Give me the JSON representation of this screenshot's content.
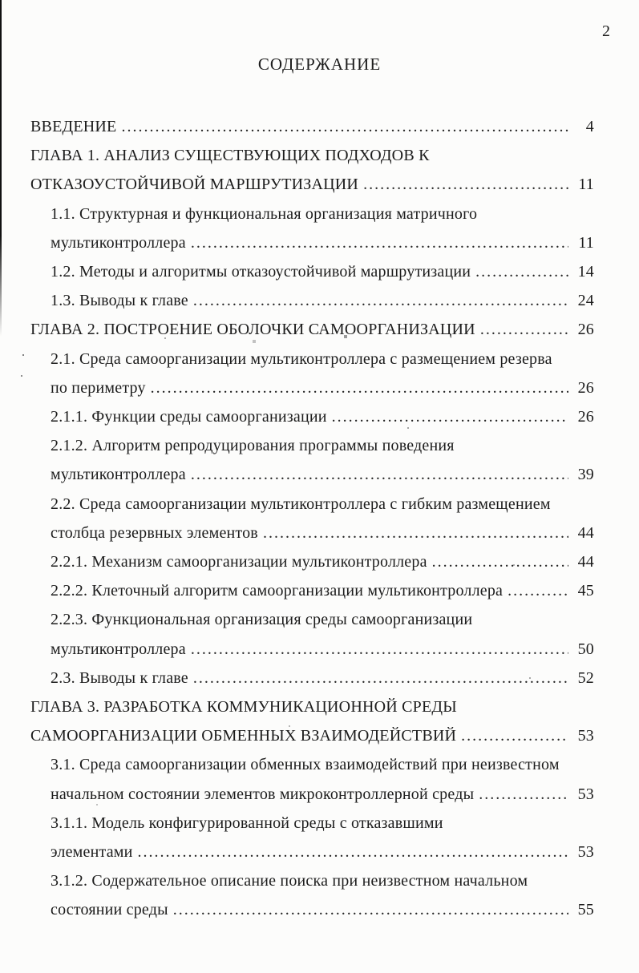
{
  "page": {
    "corner_page_number": "2",
    "title": "СОДЕРЖАНИЕ"
  },
  "toc": {
    "entries": [
      {
        "level": 0,
        "lines": [
          "ВВЕДЕНИЕ"
        ],
        "page": "4"
      },
      {
        "level": 0,
        "lines": [
          "ГЛАВА 1. АНАЛИЗ СУЩЕСТВУЮЩИХ ПОДХОДОВ К",
          "ОТКАЗОУСТОЙЧИВОЙ МАРШРУТИЗАЦИИ"
        ],
        "page": "11"
      },
      {
        "level": 1,
        "lines": [
          "1.1. Структурная и функциональная организация матричного",
          "мультиконтроллера"
        ],
        "page": "11"
      },
      {
        "level": 1,
        "lines": [
          "1.2. Методы и алгоритмы отказоустойчивой маршрутизации"
        ],
        "page": "14"
      },
      {
        "level": 1,
        "lines": [
          "1.3. Выводы к главе"
        ],
        "page": "24"
      },
      {
        "level": 0,
        "lines": [
          "ГЛАВА 2. ПОСТРОЕНИЕ ОБОЛОЧКИ САМООРГАНИЗАЦИИ"
        ],
        "page": "26"
      },
      {
        "level": 1,
        "lines": [
          "2.1. Среда самоорганизации мультиконтроллера с размещением резерва",
          "по периметру"
        ],
        "page": "26"
      },
      {
        "level": 1,
        "lines": [
          "2.1.1. Функции среды самоорганизации"
        ],
        "page": "26"
      },
      {
        "level": 1,
        "lines": [
          "2.1.2. Алгоритм репродуцирования программы поведения",
          "мультиконтроллера"
        ],
        "page": "39"
      },
      {
        "level": 1,
        "lines": [
          "2.2. Среда самоорганизации мультиконтроллера с гибким размещением",
          "столбца резервных элементов"
        ],
        "page": "44"
      },
      {
        "level": 1,
        "lines": [
          "2.2.1. Механизм самоорганизации мультиконтроллера"
        ],
        "page": "44"
      },
      {
        "level": 1,
        "lines": [
          "2.2.2. Клеточный алгоритм самоорганизации мультиконтроллера"
        ],
        "page": "45"
      },
      {
        "level": 1,
        "lines": [
          "2.2.3. Функциональная организация среды самоорганизации",
          "мультиконтроллера"
        ],
        "page": "50"
      },
      {
        "level": 1,
        "lines": [
          "2.3. Выводы к главе"
        ],
        "page": "52"
      },
      {
        "level": 0,
        "lines": [
          "ГЛАВА 3. РАЗРАБОТКА КОММУНИКАЦИОННОЙ СРЕДЫ",
          "САМООРГАНИЗАЦИИ ОБМЕННЫХ ВЗАИМОДЕЙСТВИЙ"
        ],
        "page": "53"
      },
      {
        "level": 1,
        "lines": [
          "3.1. Среда самоорганизации обменных взаимодействий при неизвестном",
          "начальном состоянии элементов микроконтроллерной среды"
        ],
        "page": "53"
      },
      {
        "level": 1,
        "lines": [
          "3.1.1. Модель конфигурированной среды с отказавшими",
          "элементами"
        ],
        "page": "53"
      },
      {
        "level": 1,
        "lines": [
          "3.1.2. Содержательное описание поиска при неизвестном начальном",
          "состоянии среды"
        ],
        "page": "55"
      }
    ]
  }
}
